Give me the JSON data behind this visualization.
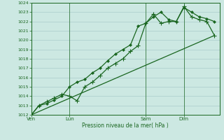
{
  "background_color": "#cce8e2",
  "grid_color": "#aacccc",
  "line_color": "#1a6620",
  "xlabel": "Pression niveau de la mer( hPa )",
  "ylim": [
    1012,
    1024
  ],
  "yticks": [
    1012,
    1013,
    1014,
    1015,
    1016,
    1017,
    1018,
    1019,
    1020,
    1021,
    1022,
    1023,
    1024
  ],
  "xtick_labels": [
    "Ven",
    "Lun",
    "Sam",
    "Dim"
  ],
  "xtick_positions": [
    0,
    30,
    90,
    120
  ],
  "xlim": [
    0,
    148
  ],
  "series1_x": [
    0,
    6,
    12,
    18,
    24,
    30,
    36,
    42,
    48,
    54,
    60,
    66,
    72,
    78,
    84,
    90,
    96,
    102,
    108,
    114,
    120,
    126,
    132,
    138,
    144
  ],
  "series1_y": [
    1012,
    1013.0,
    1013.4,
    1013.8,
    1014.2,
    1014.0,
    1013.5,
    1015.0,
    1015.5,
    1016.2,
    1017.0,
    1017.5,
    1018.0,
    1018.8,
    1019.4,
    1021.8,
    1022.8,
    1021.8,
    1022.0,
    1022.0,
    1023.6,
    1022.5,
    1022.2,
    1022.0,
    1020.5
  ],
  "series2_x": [
    0,
    6,
    12,
    18,
    24,
    30,
    36,
    42,
    48,
    54,
    60,
    66,
    72,
    78,
    84,
    90,
    96,
    102,
    108,
    114,
    120,
    126,
    132,
    138,
    144
  ],
  "series2_y": [
    1012,
    1013.0,
    1013.2,
    1013.6,
    1014.0,
    1015.0,
    1015.5,
    1015.8,
    1016.5,
    1017.0,
    1017.8,
    1018.5,
    1019.0,
    1019.5,
    1021.5,
    1021.8,
    1022.5,
    1023.0,
    1022.2,
    1022.0,
    1023.5,
    1023.0,
    1022.5,
    1022.3,
    1022.0
  ],
  "series3_x": [
    0,
    144
  ],
  "series3_y": [
    1012,
    1020.5
  ],
  "vlines": [
    0,
    30,
    90,
    120
  ]
}
